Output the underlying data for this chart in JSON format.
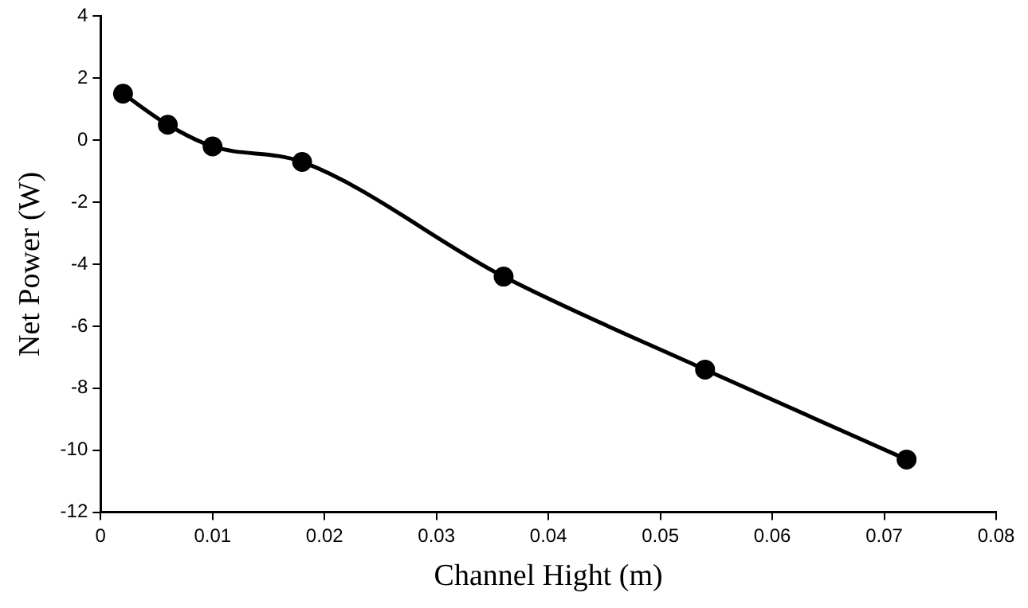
{
  "chart_data": {
    "type": "line",
    "xlabel": "Channel Hight (m)",
    "ylabel": "Net Power (W)",
    "x": [
      0.002,
      0.006,
      0.01,
      0.018,
      0.036,
      0.054,
      0.072
    ],
    "series": [
      {
        "color": "#000000",
        "values": [
          1.5,
          0.5,
          -0.2,
          -0.7,
          -4.4,
          -7.4,
          -10.3
        ]
      }
    ],
    "xlim": [
      0,
      0.08
    ],
    "xticks": [
      0,
      0.01,
      0.02,
      0.03,
      0.04,
      0.05,
      0.06,
      0.07,
      0.08
    ],
    "ylim": [
      -12,
      4
    ],
    "yticks": [
      -12,
      -10,
      -8,
      -6,
      -4,
      -2,
      0,
      2,
      4
    ],
    "grid": false,
    "legend": false,
    "marker": "circle",
    "line_style": "solid"
  }
}
